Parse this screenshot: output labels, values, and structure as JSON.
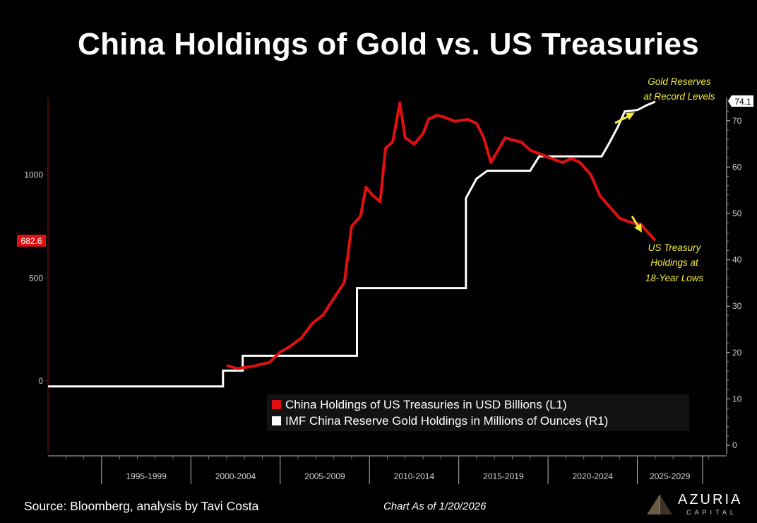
{
  "title": "China Holdings of Gold vs. US Treasuries",
  "footer": {
    "source": "Source: Bloomberg, analysis by Tavi Costa",
    "date": "Chart As of 1/20/2026"
  },
  "logo": {
    "name": "AZURIA",
    "sub": "CAPITAL",
    "icon": "pyramid-logo-icon"
  },
  "colors": {
    "treasuries": "#e01010",
    "gold": "#ffffff",
    "annotation": "#f2ea3a",
    "background": "#000000"
  },
  "chart_data": {
    "type": "line",
    "title": "China Holdings of Gold vs. US Treasuries",
    "x_range": [
      1992,
      2030
    ],
    "x_tick_labels": [
      "1995-1999",
      "2000-2004",
      "2005-2009",
      "2010-2014",
      "2015-2019",
      "2020-2024",
      "2025-2029"
    ],
    "left_axis": {
      "ylim": [
        -240,
        1400
      ],
      "ticks": [
        0,
        500,
        1000
      ],
      "last_value_label": "682.6"
    },
    "right_axis": {
      "ylim": [
        0,
        74.1
      ],
      "ticks": [
        0,
        10,
        20,
        30,
        40,
        50,
        60,
        70
      ],
      "last_value_label": "74.1"
    },
    "legend_position": "bottom-right",
    "series": [
      {
        "name": "China Holdings of US Treasuries in USD Billions (L1)",
        "axis": "left",
        "points": [
          [
            2002.0,
            75
          ],
          [
            2002.6,
            60
          ],
          [
            2003.4,
            70
          ],
          [
            2004.4,
            90
          ],
          [
            2005.0,
            140
          ],
          [
            2005.6,
            170
          ],
          [
            2006.2,
            210
          ],
          [
            2006.8,
            280
          ],
          [
            2007.4,
            320
          ],
          [
            2008.0,
            400
          ],
          [
            2008.6,
            480
          ],
          [
            2009.0,
            750
          ],
          [
            2009.5,
            800
          ],
          [
            2009.8,
            940
          ],
          [
            2010.2,
            900
          ],
          [
            2010.6,
            870
          ],
          [
            2010.9,
            1130
          ],
          [
            2011.3,
            1160
          ],
          [
            2011.7,
            1350
          ],
          [
            2012.0,
            1180
          ],
          [
            2012.5,
            1150
          ],
          [
            2013.0,
            1200
          ],
          [
            2013.3,
            1270
          ],
          [
            2013.8,
            1290
          ],
          [
            2014.2,
            1280
          ],
          [
            2014.8,
            1260
          ],
          [
            2015.5,
            1270
          ],
          [
            2016.0,
            1250
          ],
          [
            2016.4,
            1180
          ],
          [
            2016.8,
            1060
          ],
          [
            2017.2,
            1120
          ],
          [
            2017.6,
            1180
          ],
          [
            2018.0,
            1170
          ],
          [
            2018.5,
            1160
          ],
          [
            2019.0,
            1120
          ],
          [
            2019.6,
            1100
          ],
          [
            2020.2,
            1080
          ],
          [
            2020.8,
            1060
          ],
          [
            2021.3,
            1080
          ],
          [
            2021.8,
            1060
          ],
          [
            2022.4,
            1000
          ],
          [
            2022.9,
            900
          ],
          [
            2023.4,
            850
          ],
          [
            2024.0,
            790
          ],
          [
            2024.6,
            770
          ],
          [
            2025.2,
            760
          ],
          [
            2025.6,
            720
          ],
          [
            2026.0,
            682.6
          ]
        ]
      },
      {
        "name": "IMF China Reserve Gold Holdings in Millions of Ounces (R1)",
        "axis": "right",
        "points": [
          [
            1992.0,
            12.7
          ],
          [
            2001.8,
            12.7
          ],
          [
            2001.8,
            16.1
          ],
          [
            2002.9,
            16.1
          ],
          [
            2002.9,
            19.3
          ],
          [
            2009.3,
            19.3
          ],
          [
            2009.3,
            33.9
          ],
          [
            2015.4,
            33.9
          ],
          [
            2015.4,
            53.3
          ],
          [
            2016.0,
            57.5
          ],
          [
            2016.6,
            59.2
          ],
          [
            2019.0,
            59.2
          ],
          [
            2019.5,
            62.3
          ],
          [
            2023.0,
            62.3
          ],
          [
            2023.4,
            65.0
          ],
          [
            2023.9,
            68.6
          ],
          [
            2024.3,
            72.0
          ],
          [
            2025.0,
            72.3
          ],
          [
            2025.5,
            73.3
          ],
          [
            2026.0,
            74.1
          ]
        ]
      }
    ],
    "annotations": [
      {
        "lines": [
          "Gold Reserves",
          "at Record Levels"
        ]
      },
      {
        "lines": [
          "US Treasury",
          "Holdings at",
          "18-Year Lows"
        ]
      }
    ]
  }
}
